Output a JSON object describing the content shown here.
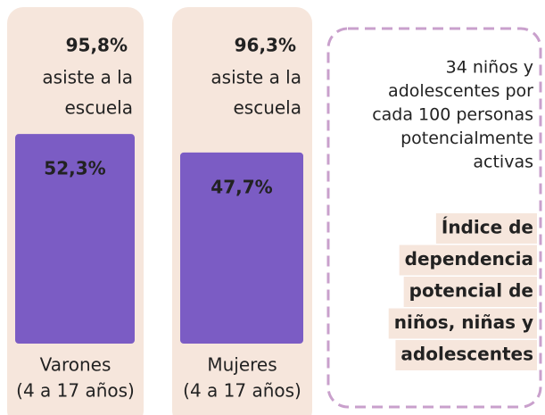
{
  "cards": [
    {
      "attendance": "95,8%",
      "attendance_lines": [
        "asiste a la",
        "escuela"
      ],
      "share": 52.3,
      "share_label": "52,3%",
      "group": "Varones",
      "age": "(4 a 17 años)"
    },
    {
      "attendance": "96,3%",
      "attendance_lines": [
        "asiste a la",
        "escuela"
      ],
      "share": 47.7,
      "share_label": "47,7%",
      "group": "Mujeres",
      "age": "(4 a 17 años)"
    }
  ],
  "bar_color": "#7b5cc4",
  "note": {
    "lines": [
      "34 niños y",
      "adolescentes por",
      "cada 100 personas",
      "potencialmente",
      "activas"
    ],
    "title_lines": [
      "Índice de",
      "dependencia",
      "potencial de",
      "niños, niñas y",
      "adolescentes"
    ]
  }
}
